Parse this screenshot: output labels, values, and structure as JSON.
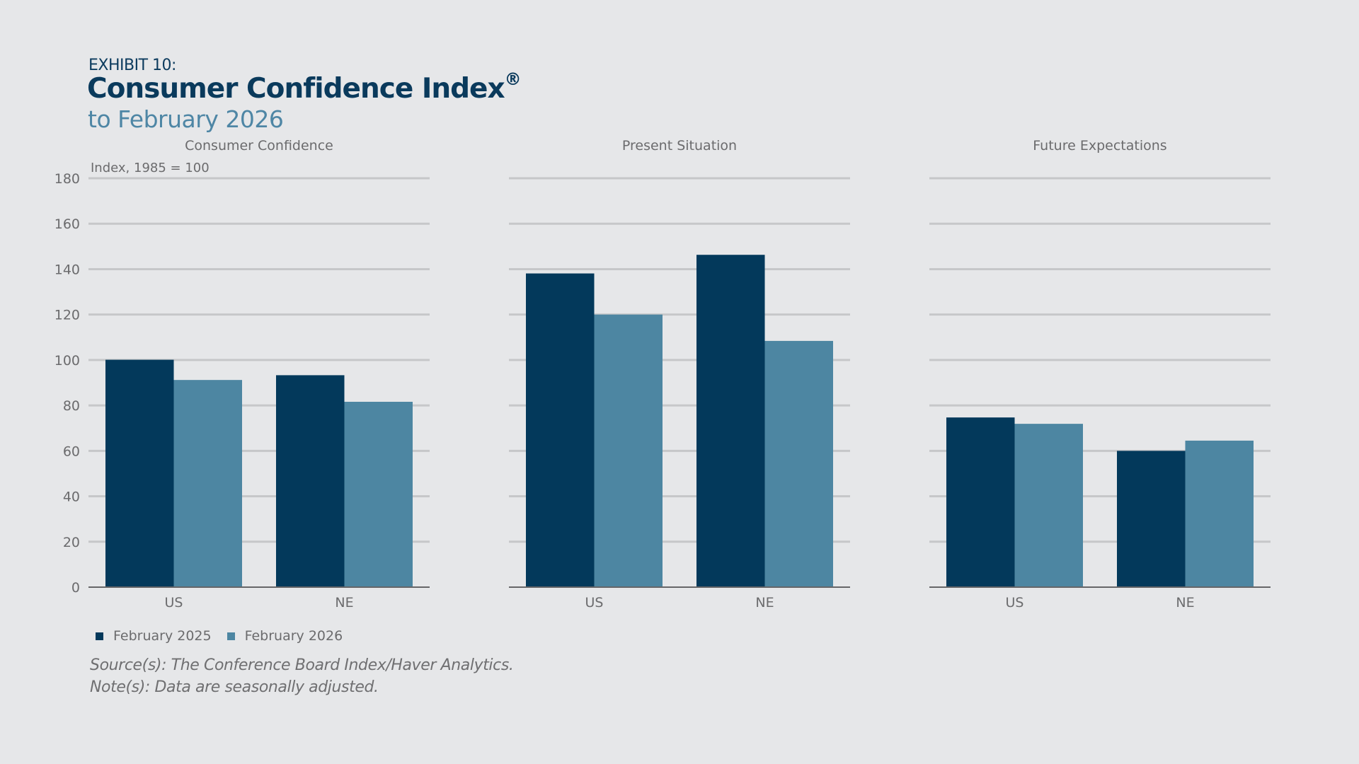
{
  "header": {
    "exhibit": "EXHIBIT 10:",
    "title": "Consumer Confidence Index",
    "registered_mark": "®",
    "subtitle": "to February 2026"
  },
  "colors": {
    "series_2025": "#03395b",
    "series_2026": "#4d86a2",
    "gridline": "#c6c7c9",
    "axis": "#666668",
    "text": "#6b6b6d"
  },
  "chart_data": [
    {
      "type": "bar",
      "title": "Consumer Confidence",
      "ylabel": "Index, 1985 = 100",
      "xlabel": "",
      "categories": [
        "US",
        "NE"
      ],
      "series": [
        {
          "name": "February 2025",
          "values": [
            100.1,
            93.3
          ]
        },
        {
          "name": "February 2026",
          "values": [
            91.2,
            81.6
          ]
        }
      ],
      "ylim": [
        0,
        180
      ],
      "yticks": [
        0,
        20,
        40,
        60,
        80,
        100,
        120,
        140,
        160,
        180
      ],
      "grid": true
    },
    {
      "type": "bar",
      "title": "Present Situation",
      "ylabel": "",
      "xlabel": "",
      "categories": [
        "US",
        "NE"
      ],
      "series": [
        {
          "name": "February 2025",
          "values": [
            138.1,
            146.3
          ]
        },
        {
          "name": "February 2026",
          "values": [
            120.0,
            108.4
          ]
        }
      ],
      "ylim": [
        0,
        180
      ],
      "yticks": [
        0,
        20,
        40,
        60,
        80,
        100,
        120,
        140,
        160,
        180
      ],
      "grid": true
    },
    {
      "type": "bar",
      "title": "Future Expectations",
      "ylabel": "",
      "xlabel": "",
      "categories": [
        "US",
        "NE"
      ],
      "series": [
        {
          "name": "February 2025",
          "values": [
            74.7,
            60.0
          ]
        },
        {
          "name": "February 2026",
          "values": [
            71.9,
            64.5
          ]
        }
      ],
      "ylim": [
        0,
        180
      ],
      "yticks": [
        0,
        20,
        40,
        60,
        80,
        100,
        120,
        140,
        160,
        180
      ],
      "grid": true
    }
  ],
  "legend": {
    "placement": "bottom-left",
    "items": [
      {
        "label": "February 2025"
      },
      {
        "label": "February 2026"
      }
    ]
  },
  "footer": {
    "source": "Source(s): The Conference Board Index/Haver Analytics.",
    "note": "Note(s): Data are seasonally adjusted."
  }
}
